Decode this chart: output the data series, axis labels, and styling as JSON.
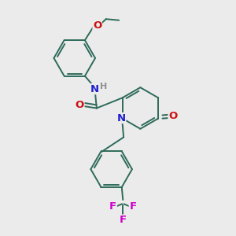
{
  "bg_color": "#ebebeb",
  "bond_color": "#2d6b5a",
  "N_color": "#2020cc",
  "O_color": "#cc1010",
  "F_color": "#cc00cc",
  "H_color": "#909090",
  "figsize": [
    3.0,
    3.0
  ],
  "dpi": 100,
  "xlim": [
    0,
    10
  ],
  "ylim": [
    0,
    10
  ]
}
